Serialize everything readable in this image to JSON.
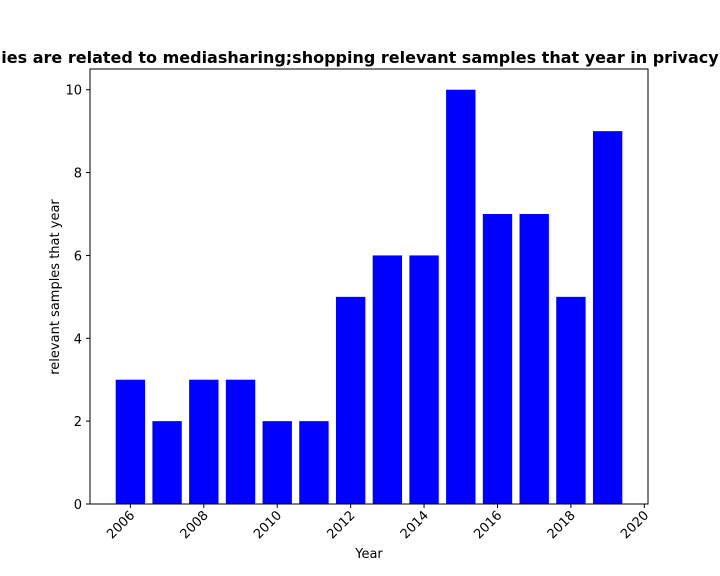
{
  "chart_data": {
    "type": "bar",
    "title": "ies are related to mediasharing;shopping relevant samples that year in privacy",
    "xlabel": "Year",
    "ylabel": "relevant samples that year",
    "x": [
      2006,
      2007,
      2008,
      2009,
      2010,
      2011,
      2012,
      2013,
      2014,
      2015,
      2016,
      2017,
      2018,
      2019
    ],
    "values": [
      3,
      2,
      3,
      3,
      2,
      2,
      5,
      6,
      6,
      10,
      7,
      7,
      5,
      9
    ],
    "xlim": [
      2004.9,
      2020.1
    ],
    "ylim": [
      0,
      10.5
    ],
    "xticks": [
      2006,
      2008,
      2010,
      2012,
      2014,
      2016,
      2018,
      2020
    ],
    "yticks": [
      0,
      2,
      4,
      6,
      8,
      10
    ],
    "bar_color": "#0000ff",
    "grid": false,
    "legend": "none"
  }
}
